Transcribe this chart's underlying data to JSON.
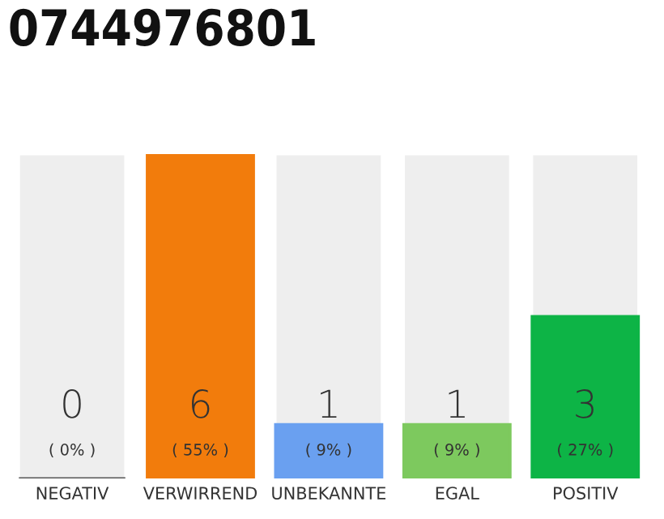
{
  "chart_data": {
    "type": "bar",
    "title": "0744976801",
    "categories": [
      "NEGATIV",
      "VERWIRREND",
      "UNBEKANNTE",
      "EGAL",
      "POSITIV"
    ],
    "values": [
      0,
      6,
      1,
      1,
      3
    ],
    "colors": [
      "#555555",
      "#f27c0c",
      "#6aa0f0",
      "#7dc95e",
      "#0db446"
    ],
    "tick_labels": "x",
    "grid": false,
    "value_labels": [
      "0",
      "6",
      "1",
      "1",
      "3"
    ],
    "annotations": [
      "( 0% )",
      "( 55% )",
      "( 9% )",
      "( 9% )",
      "( 27% )"
    ]
  }
}
